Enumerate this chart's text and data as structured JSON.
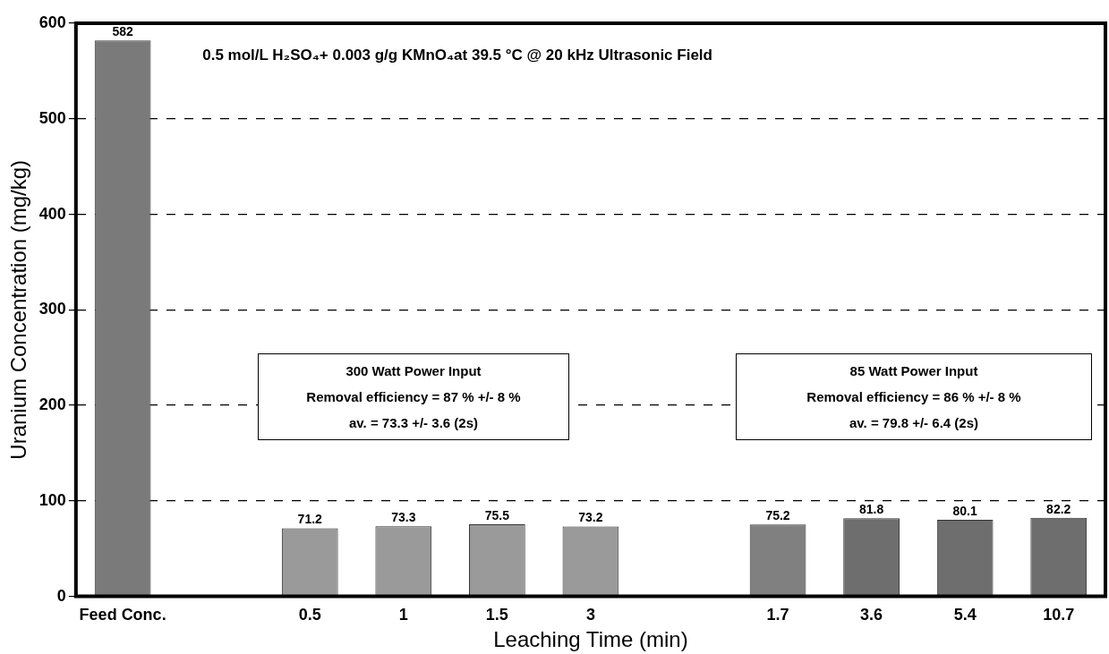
{
  "chart_data": {
    "type": "bar",
    "xlabel": "Leaching Time (min)",
    "ylabel": "Uranium Concentration (mg/kg)",
    "categories": [
      "Feed Conc.",
      null,
      "0.5",
      "1",
      "1.5",
      "3",
      null,
      "1.7",
      "3.6",
      "5.4",
      "10.7"
    ],
    "values": [
      582,
      null,
      71.2,
      73.3,
      75.5,
      73.2,
      null,
      75.2,
      81.8,
      80.1,
      82.2
    ],
    "colors": [
      "#7a7a7a",
      "#7a7a7a",
      "#9a9a9a",
      "#9a9a9a",
      "#9a9a9a",
      "#9a9a9a",
      "#7a7a7a",
      "#808080",
      "#6e6e6e",
      "#6e6e6e",
      "#6e6e6e"
    ],
    "ylim": [
      0,
      600
    ],
    "yticks": [
      0,
      100,
      200,
      300,
      400,
      500,
      600
    ],
    "grid": "y",
    "data_labels": true,
    "annotations": [
      "0.5 mol/L H₂SO₄+ 0.003 g/g KMnO₄at 39.5 °C @ 20 kHz Ultrasonic  Field",
      "300 Watt Power Input",
      "Removal efficiency = 87 % +/- 8 %",
      "av. = 73.3 +/- 3.6 (2s)",
      "85 Watt Power Input",
      "Removal efficiency = 86 % +/- 8 %",
      "av. = 79.8 +/- 6.4 (2s)"
    ]
  }
}
